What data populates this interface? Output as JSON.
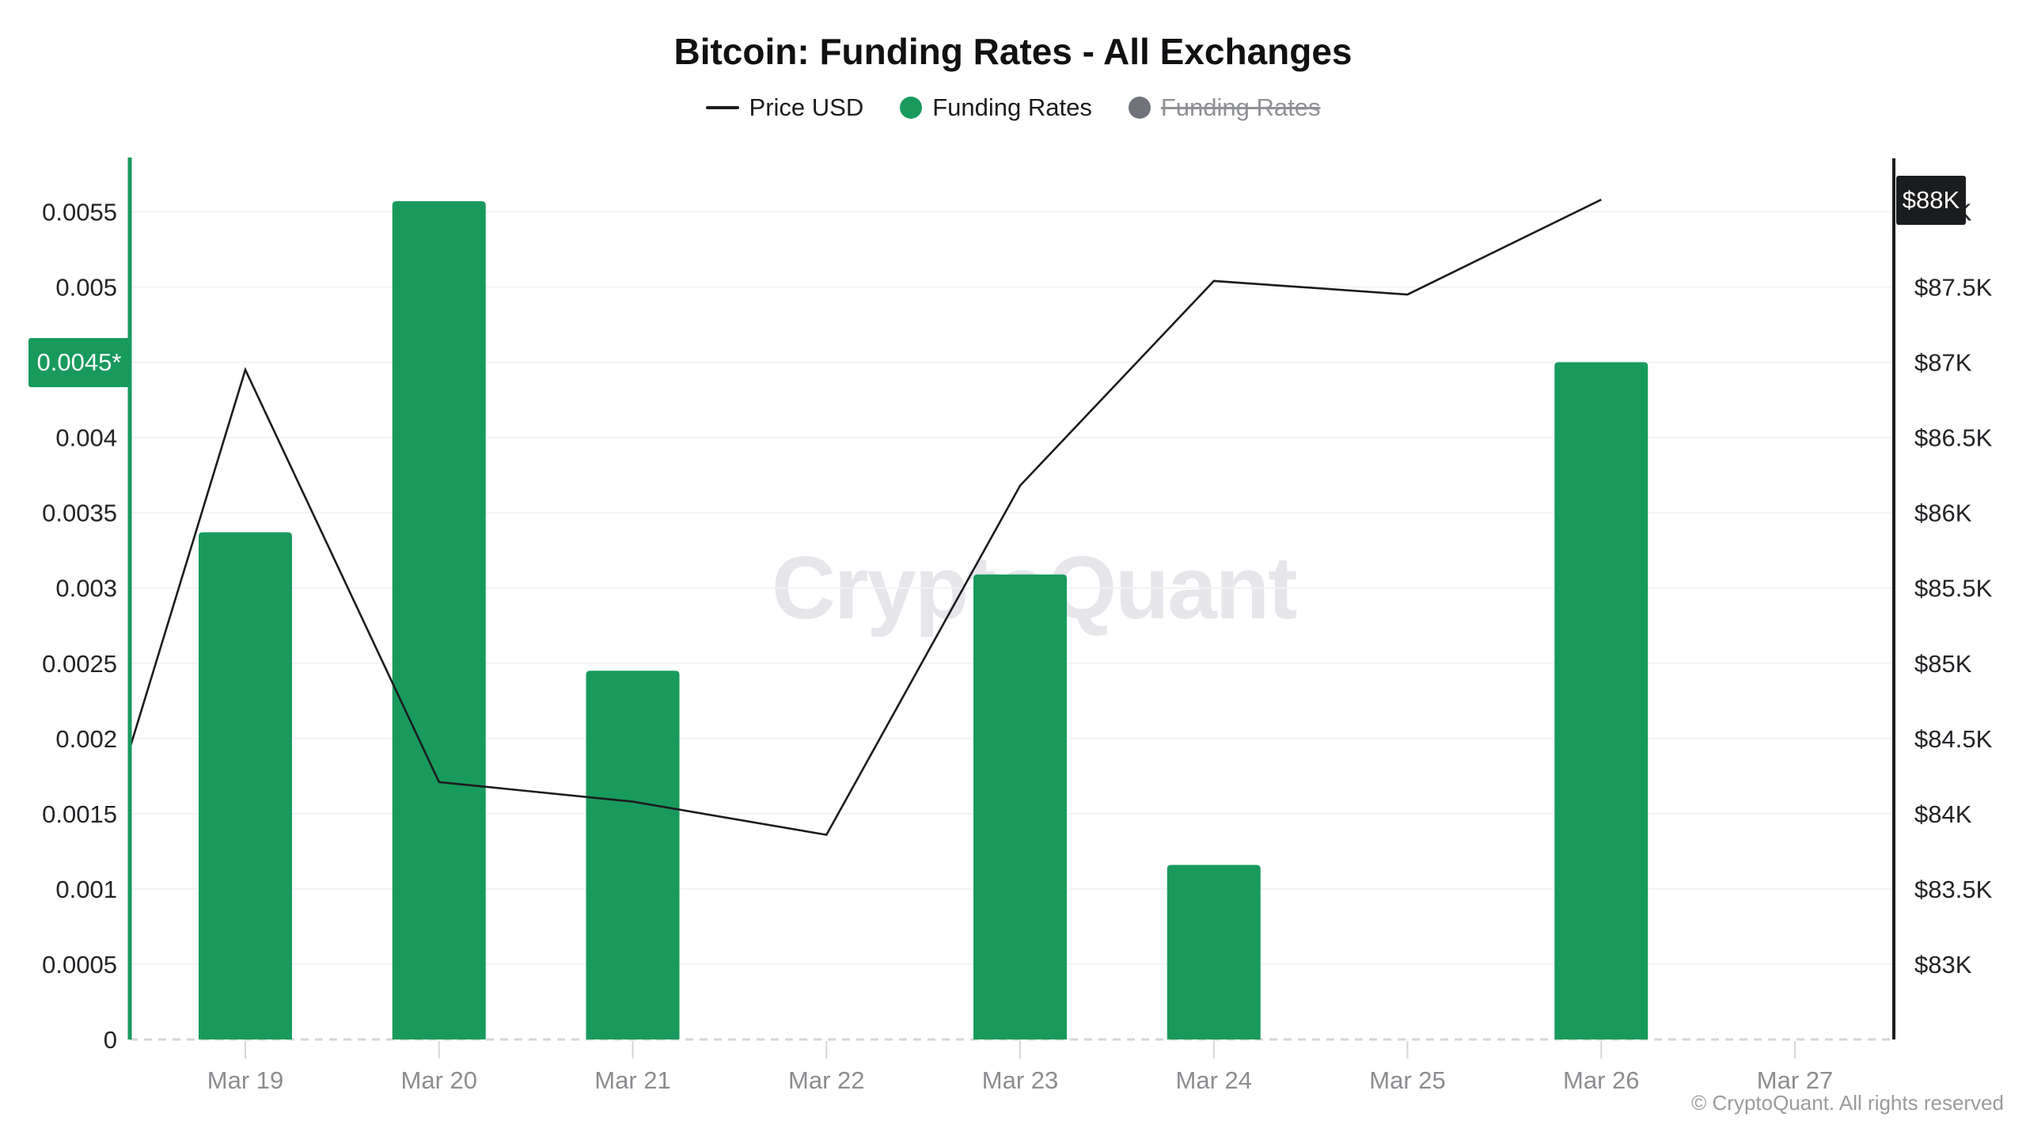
{
  "header": {
    "title": "Bitcoin: Funding Rates - All Exchanges"
  },
  "legend": {
    "items": [
      {
        "label": "Price USD",
        "swatch": "line",
        "color": "#1b1c1e",
        "disabled": false
      },
      {
        "label": "Funding Rates",
        "swatch": "dot",
        "color": "#189a5d",
        "disabled": false
      },
      {
        "label": "Funding Rates",
        "swatch": "dot",
        "color": "#707379",
        "disabled": true
      }
    ]
  },
  "watermark": {
    "text": "CryptoQuant"
  },
  "footer": {
    "copyright": "© CryptoQuant. All rights reserved"
  },
  "chart_data": {
    "type": "bar",
    "subtype": "bar+line dual axis",
    "title": "Bitcoin: Funding Rates - All Exchanges",
    "categories": [
      "Mar 19",
      "Mar 20",
      "Mar 21",
      "Mar 22",
      "Mar 23",
      "Mar 24",
      "Mar 25",
      "Mar 26",
      "Mar 27"
    ],
    "series": [
      {
        "name": "Funding Rates",
        "type": "bar",
        "axis": "left",
        "color": "#189a5d",
        "values": [
          0.00337,
          0.00557,
          0.00245,
          null,
          0.00309,
          0.00116,
          null,
          0.0045,
          null
        ]
      },
      {
        "name": "Price USD",
        "type": "line",
        "axis": "right",
        "color": "#1b1c1e",
        "unit": "thousand USD",
        "points": [
          {
            "day": -0.6,
            "value": 84.42
          },
          {
            "day": 0,
            "value": 86.95
          },
          {
            "day": 1,
            "value": 84.21
          },
          {
            "day": 2,
            "value": 84.08
          },
          {
            "day": 3,
            "value": 83.86
          },
          {
            "day": 4,
            "value": 86.18
          },
          {
            "day": 5,
            "value": 87.54
          },
          {
            "day": 6,
            "value": 87.45
          },
          {
            "day": 7,
            "value": 88.08
          }
        ]
      },
      {
        "name": "Funding Rates",
        "type": "bar",
        "axis": "left",
        "color": "#707379",
        "disabled": true,
        "values": []
      }
    ],
    "left_axis": {
      "title": "",
      "range": [
        0,
        0.0055
      ],
      "tick_labels": [
        "0.0055",
        "0.005",
        "0.0045",
        "0.004",
        "0.0035",
        "0.003",
        "0.0025",
        "0.002",
        "0.0015",
        "0.001",
        "0.0005",
        "0"
      ],
      "tick_values": [
        0.0055,
        0.005,
        0.0045,
        0.004,
        0.0035,
        0.003,
        0.0025,
        0.002,
        0.0015,
        0.001,
        0.0005,
        0
      ],
      "hidden_behind_badge": "0.0045",
      "current_label": "0.0045*",
      "current_value": 0.0045,
      "color": "#189a5d"
    },
    "right_axis": {
      "title": "",
      "range": [
        83,
        88
      ],
      "tick_labels": [
        "$88K",
        "$87.5K",
        "$87K",
        "$86.5K",
        "$86K",
        "$85.5K",
        "$85K",
        "$84.5K",
        "$84K",
        "$83.5K",
        "$83K"
      ],
      "tick_values": [
        88,
        87.5,
        87,
        86.5,
        86,
        85.5,
        85,
        84.5,
        84,
        83.5,
        83
      ],
      "current_label": "$88K",
      "current_value": 88.08,
      "color": "#1b1c1e"
    },
    "grid": true,
    "legend_position": "top"
  }
}
